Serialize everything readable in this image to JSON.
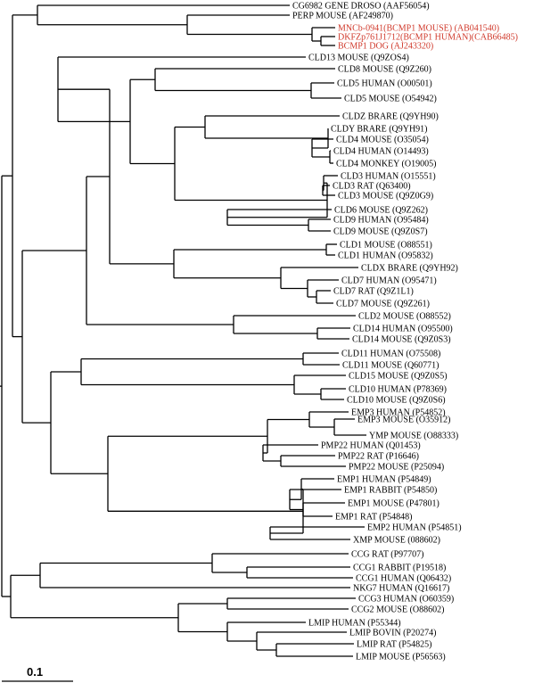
{
  "tree": {
    "highlight_color": "#d0392b",
    "leaves": [
      {
        "text": "CG6982 GENE DROSO  (AAF56054)",
        "highlight": false
      },
      {
        "text": "PERP MOUSE  (AF249870)",
        "highlight": false
      },
      {
        "text": "MNCb-0941(BCMP1 MOUSE) (AB041540)",
        "highlight": true
      },
      {
        "text": "DKFZp761J1712(BCMP1 HUMAN)(CAB66485)",
        "highlight": true
      },
      {
        "text": "BCMP1 DOG  (AJ243320)",
        "highlight": true
      },
      {
        "text": "CLD13 MOUSE  (Q9ZOS4)",
        "highlight": false
      },
      {
        "text": "CLD8 MOUSE  (Q9Z260)",
        "highlight": false
      },
      {
        "text": "CLD5 HUMAN  (O00501)",
        "highlight": false
      },
      {
        "text": "CLD5 MOUSE  (O54942)",
        "highlight": false
      },
      {
        "text": "CLDZ BRARE  (Q9YH90)",
        "highlight": false
      },
      {
        "text": "CLDY BRARE  (Q9YH91)",
        "highlight": false
      },
      {
        "text": "CLD4 MOUSE  (O35054)",
        "highlight": false
      },
      {
        "text": "CLD4 HUMAN  (O14493)",
        "highlight": false
      },
      {
        "text": "CLD4 MONKEY  (O19005)",
        "highlight": false
      },
      {
        "text": "CLD3 HUMAN  (O15551)",
        "highlight": false
      },
      {
        "text": "CLD3 RAT  (Q63400)",
        "highlight": false
      },
      {
        "text": "CLD3 MOUSE  (Q9Z0G9)",
        "highlight": false
      },
      {
        "text": "CLD6 MOUSE  (Q9Z262)",
        "highlight": false
      },
      {
        "text": "CLD9 HUMAN  (O95484)",
        "highlight": false
      },
      {
        "text": "CLD9 MOUSE  (Q9Z0S7)",
        "highlight": false
      },
      {
        "text": "CLD1 MOUSE  (O88551)",
        "highlight": false
      },
      {
        "text": "CLD1 HUMAN  (O95832)",
        "highlight": false
      },
      {
        "text": "CLDX BRARE  (Q9YH92)",
        "highlight": false
      },
      {
        "text": "CLD7 HUMAN  (O95471)",
        "highlight": false
      },
      {
        "text": "CLD7 RAT  (Q9Z1L1)",
        "highlight": false
      },
      {
        "text": "CLD7 MOUSE  (Q9Z261)",
        "highlight": false
      },
      {
        "text": "CLD2 MOUSE  (O88552)",
        "highlight": false
      },
      {
        "text": "CLD14 HUMAN  (O95500)",
        "highlight": false
      },
      {
        "text": "CLD14 MOUSE  (Q9Z0S3)",
        "highlight": false
      },
      {
        "text": "CLD11 HUMAN  (O75508)",
        "highlight": false
      },
      {
        "text": "CLD11 MOUSE  (Q60771)",
        "highlight": false
      },
      {
        "text": "CLD15 MOUSE  (Q9Z0S5)",
        "highlight": false
      },
      {
        "text": "CLD10 HUMAN  (P78369)",
        "highlight": false
      },
      {
        "text": "CLD10 MOUSE  (Q9Z0S6)",
        "highlight": false
      },
      {
        "text": "EMP3 HUMAN  (P54852)",
        "highlight": false
      },
      {
        "text": "EMP3 MOUSE  (O35912)",
        "highlight": false
      },
      {
        "text": "YMP MOUSE  (O88333)",
        "highlight": false
      },
      {
        "text": "PMP22 HUMAN  (Q01453)",
        "highlight": false
      },
      {
        "text": "PMP22 RAT  (P16646)",
        "highlight": false
      },
      {
        "text": "PMP22 MOUSE  (P25094)",
        "highlight": false
      },
      {
        "text": "EMP1 HUMAN  (P54849)",
        "highlight": false
      },
      {
        "text": "EMP1 RABBIT  (P54850)",
        "highlight": false
      },
      {
        "text": "EMP1 MOUSE  (P47801)",
        "highlight": false
      },
      {
        "text": "EMP1 RAT  (P54848)",
        "highlight": false
      },
      {
        "text": "EMP2 HUMAN  (P54851)",
        "highlight": false
      },
      {
        "text": "XMP MOUSE  (088602)",
        "highlight": false
      },
      {
        "text": "CCG RAT  (P97707)",
        "highlight": false
      },
      {
        "text": "CCG1 RABBIT  (P19518)",
        "highlight": false
      },
      {
        "text": "CCG1 HUMAN  (Q06432)",
        "highlight": false
      },
      {
        "text": "NKG7 HUMAN  (Q16617)",
        "highlight": false
      },
      {
        "text": "CCG3 HUMAN  (O60359)",
        "highlight": false
      },
      {
        "text": "CCG2 MOUSE  (O88602)",
        "highlight": false
      },
      {
        "text": "LMIP HUMAN  (P55344)",
        "highlight": false
      },
      {
        "text": "LMIP BOVIN  (P20274)",
        "highlight": false
      },
      {
        "text": "LMIP RAT  (P54825)",
        "highlight": false
      },
      {
        "text": "LMIP MOUSE  (P56563)",
        "highlight": false
      }
    ],
    "scale_bar": {
      "label": "0.1"
    }
  }
}
